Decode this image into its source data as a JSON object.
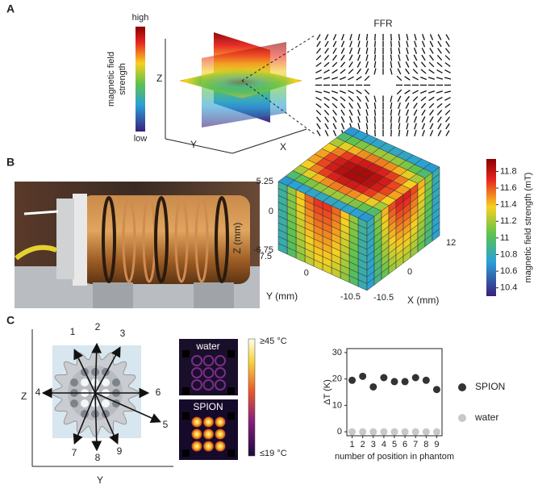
{
  "panels": {
    "a": {
      "label": "A",
      "colorbar_title": [
        "magnetic field",
        "strength"
      ],
      "high": "high",
      "low": "low",
      "z": "Z",
      "y": "Y",
      "x": "X",
      "ffr": "FFR"
    },
    "b": {
      "label": "B",
      "z_label": "Z (mm)",
      "y_label": "Y (mm)",
      "x_label": "X (mm)",
      "z_ticks": [
        5.25,
        0,
        -6.75
      ],
      "y_ticks": [
        7.5,
        0,
        -10.5
      ],
      "x_ticks": [
        -10.5,
        0,
        12
      ],
      "colorbar_title": "magnetic field strength (mT)",
      "colorbar_lim": [
        10.3,
        11.95
      ],
      "colorbar_ticks": [
        10.4,
        10.6,
        10.8,
        11,
        11.2,
        11.4,
        11.6,
        11.8
      ]
    },
    "c": {
      "label": "C",
      "z": "Z",
      "y": "Y",
      "positions": [
        "1",
        "2",
        "3",
        "4",
        "5",
        "6",
        "7",
        "8",
        "9"
      ],
      "water": "water",
      "spion": "SPION",
      "temp_high": "≥45 °C",
      "temp_low": "≤19 °C"
    }
  },
  "chart_data": {
    "type": "scatter",
    "x_label": "number of position in phantom",
    "y_label": "ΔT (K)",
    "x": [
      1,
      2,
      3,
      4,
      5,
      6,
      7,
      8,
      9
    ],
    "xlim": [
      0.5,
      9.5
    ],
    "xticks": [
      1,
      2,
      3,
      4,
      5,
      6,
      7,
      8,
      9
    ],
    "ylim": [
      -1.5,
      31.5
    ],
    "yticks": [
      0,
      10,
      20,
      30
    ],
    "legend": "right",
    "series": [
      {
        "name": "SPION",
        "color": "#333333",
        "values": [
          19.5,
          21,
          17,
          20.5,
          19,
          19,
          20.5,
          19.5,
          16
        ]
      },
      {
        "name": "water",
        "color": "#c8c8c8",
        "values": [
          0,
          0,
          0,
          0,
          0,
          0,
          0,
          0,
          0
        ]
      }
    ]
  }
}
